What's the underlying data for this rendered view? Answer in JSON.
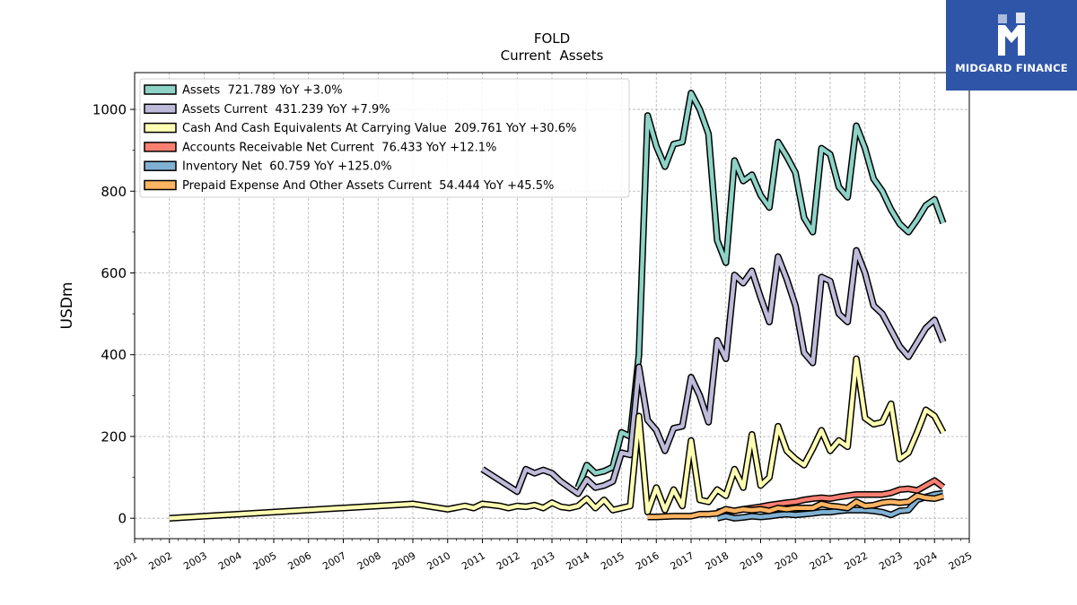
{
  "header": {
    "title": "FOLD",
    "subtitle": "Current  Assets"
  },
  "brand": {
    "name": "MIDGARD FINANCE",
    "logo_icon": "midgard-logo-icon",
    "color": "#2f55a8"
  },
  "chart_data": {
    "type": "line",
    "ylabel": "USDm",
    "xlim": [
      2001,
      2025
    ],
    "ylim": [
      -50,
      1090
    ],
    "grid": true,
    "legend_position": "top-left",
    "xticks": [
      "2001",
      "2002",
      "2003",
      "2004",
      "2005",
      "2006",
      "2007",
      "2008",
      "2009",
      "2010",
      "2011",
      "2012",
      "2013",
      "2014",
      "2015",
      "2016",
      "2017",
      "2018",
      "2019",
      "2020",
      "2021",
      "2022",
      "2023",
      "2024",
      "2025"
    ],
    "yticks": [
      0,
      200,
      400,
      600,
      800,
      1000
    ],
    "series": [
      {
        "name": "Assets",
        "legend": "Assets  721.789 YoY +3.0%",
        "color": "#8dd3c7",
        "points": [
          [
            2013.75,
            75
          ],
          [
            2014.0,
            130
          ],
          [
            2014.25,
            110
          ],
          [
            2014.5,
            115
          ],
          [
            2014.75,
            125
          ],
          [
            2015.0,
            210
          ],
          [
            2015.25,
            200
          ],
          [
            2015.5,
            400
          ],
          [
            2015.75,
            985
          ],
          [
            2016.0,
            910
          ],
          [
            2016.25,
            860
          ],
          [
            2016.5,
            915
          ],
          [
            2016.75,
            920
          ],
          [
            2017.0,
            1040
          ],
          [
            2017.25,
            1000
          ],
          [
            2017.5,
            940
          ],
          [
            2017.75,
            680
          ],
          [
            2018.0,
            625
          ],
          [
            2018.25,
            875
          ],
          [
            2018.5,
            825
          ],
          [
            2018.75,
            840
          ],
          [
            2019.0,
            790
          ],
          [
            2019.25,
            760
          ],
          [
            2019.5,
            920
          ],
          [
            2019.75,
            885
          ],
          [
            2020.0,
            845
          ],
          [
            2020.25,
            735
          ],
          [
            2020.5,
            700
          ],
          [
            2020.75,
            905
          ],
          [
            2021.0,
            890
          ],
          [
            2021.25,
            810
          ],
          [
            2021.5,
            785
          ],
          [
            2021.75,
            960
          ],
          [
            2022.0,
            905
          ],
          [
            2022.25,
            830
          ],
          [
            2022.5,
            800
          ],
          [
            2022.75,
            755
          ],
          [
            2023.0,
            720
          ],
          [
            2023.25,
            700
          ],
          [
            2023.5,
            730
          ],
          [
            2023.75,
            765
          ],
          [
            2024.0,
            780
          ],
          [
            2024.25,
            722
          ]
        ]
      },
      {
        "name": "Assets Current",
        "legend": "Assets Current  431.239 YoY +7.9%",
        "color": "#bebada",
        "points": [
          [
            2011.0,
            120
          ],
          [
            2012.0,
            65
          ],
          [
            2012.25,
            120
          ],
          [
            2012.5,
            110
          ],
          [
            2012.75,
            118
          ],
          [
            2013.0,
            110
          ],
          [
            2013.25,
            90
          ],
          [
            2013.5,
            75
          ],
          [
            2013.75,
            60
          ],
          [
            2014.0,
            95
          ],
          [
            2014.25,
            75
          ],
          [
            2014.5,
            80
          ],
          [
            2014.75,
            90
          ],
          [
            2015.0,
            160
          ],
          [
            2015.25,
            155
          ],
          [
            2015.5,
            370
          ],
          [
            2015.75,
            240
          ],
          [
            2016.0,
            215
          ],
          [
            2016.25,
            165
          ],
          [
            2016.5,
            220
          ],
          [
            2016.75,
            225
          ],
          [
            2017.0,
            345
          ],
          [
            2017.25,
            300
          ],
          [
            2017.5,
            235
          ],
          [
            2017.75,
            435
          ],
          [
            2018.0,
            390
          ],
          [
            2018.25,
            595
          ],
          [
            2018.5,
            575
          ],
          [
            2018.75,
            605
          ],
          [
            2019.0,
            540
          ],
          [
            2019.25,
            480
          ],
          [
            2019.5,
            640
          ],
          [
            2019.75,
            585
          ],
          [
            2020.0,
            520
          ],
          [
            2020.25,
            405
          ],
          [
            2020.5,
            380
          ],
          [
            2020.75,
            590
          ],
          [
            2021.0,
            580
          ],
          [
            2021.25,
            500
          ],
          [
            2021.5,
            480
          ],
          [
            2021.75,
            655
          ],
          [
            2022.0,
            600
          ],
          [
            2022.25,
            520
          ],
          [
            2022.5,
            500
          ],
          [
            2022.75,
            460
          ],
          [
            2023.0,
            420
          ],
          [
            2023.25,
            395
          ],
          [
            2023.5,
            430
          ],
          [
            2023.75,
            465
          ],
          [
            2024.0,
            485
          ],
          [
            2024.25,
            431
          ]
        ]
      },
      {
        "name": "Cash And Cash Equivalents At Carrying Value",
        "legend": "Cash And Cash Equivalents At Carrying Value  209.761 YoY +30.6%",
        "color": "#ffffb3",
        "points": [
          [
            2002.0,
            0
          ],
          [
            2009.0,
            35
          ],
          [
            2010.0,
            22
          ],
          [
            2010.5,
            30
          ],
          [
            2010.75,
            25
          ],
          [
            2011.0,
            35
          ],
          [
            2011.5,
            30
          ],
          [
            2011.75,
            25
          ],
          [
            2012.0,
            30
          ],
          [
            2012.25,
            28
          ],
          [
            2012.5,
            32
          ],
          [
            2012.75,
            25
          ],
          [
            2013.0,
            38
          ],
          [
            2013.25,
            28
          ],
          [
            2013.5,
            25
          ],
          [
            2013.75,
            30
          ],
          [
            2014.0,
            48
          ],
          [
            2014.25,
            25
          ],
          [
            2014.5,
            45
          ],
          [
            2014.75,
            20
          ],
          [
            2015.0,
            25
          ],
          [
            2015.25,
            30
          ],
          [
            2015.5,
            250
          ],
          [
            2015.75,
            15
          ],
          [
            2016.0,
            75
          ],
          [
            2016.25,
            20
          ],
          [
            2016.5,
            70
          ],
          [
            2016.75,
            30
          ],
          [
            2017.0,
            190
          ],
          [
            2017.25,
            45
          ],
          [
            2017.5,
            40
          ],
          [
            2017.75,
            70
          ],
          [
            2018.0,
            55
          ],
          [
            2018.25,
            120
          ],
          [
            2018.5,
            75
          ],
          [
            2018.75,
            205
          ],
          [
            2019.0,
            80
          ],
          [
            2019.25,
            100
          ],
          [
            2019.5,
            225
          ],
          [
            2019.75,
            165
          ],
          [
            2020.0,
            145
          ],
          [
            2020.25,
            130
          ],
          [
            2020.5,
            170
          ],
          [
            2020.75,
            215
          ],
          [
            2021.0,
            165
          ],
          [
            2021.25,
            190
          ],
          [
            2021.5,
            175
          ],
          [
            2021.75,
            390
          ],
          [
            2022.0,
            245
          ],
          [
            2022.25,
            230
          ],
          [
            2022.5,
            235
          ],
          [
            2022.75,
            280
          ],
          [
            2023.0,
            145
          ],
          [
            2023.25,
            160
          ],
          [
            2023.5,
            210
          ],
          [
            2023.75,
            265
          ],
          [
            2024.0,
            250
          ],
          [
            2024.25,
            210
          ]
        ]
      },
      {
        "name": "Accounts Receivable Net Current",
        "legend": "Accounts Receivable Net Current  76.433 YoY +12.1%",
        "color": "#fb8072",
        "points": [
          [
            2017.75,
            15
          ],
          [
            2018.0,
            20
          ],
          [
            2018.25,
            18
          ],
          [
            2018.5,
            22
          ],
          [
            2018.75,
            25
          ],
          [
            2019.0,
            28
          ],
          [
            2019.25,
            32
          ],
          [
            2019.5,
            35
          ],
          [
            2019.75,
            38
          ],
          [
            2020.0,
            40
          ],
          [
            2020.25,
            45
          ],
          [
            2020.5,
            48
          ],
          [
            2020.75,
            50
          ],
          [
            2021.0,
            48
          ],
          [
            2021.25,
            52
          ],
          [
            2021.5,
            55
          ],
          [
            2021.75,
            58
          ],
          [
            2022.0,
            58
          ],
          [
            2022.25,
            58
          ],
          [
            2022.5,
            58
          ],
          [
            2022.75,
            62
          ],
          [
            2023.0,
            70
          ],
          [
            2023.25,
            72
          ],
          [
            2023.5,
            68
          ],
          [
            2023.75,
            80
          ],
          [
            2024.0,
            92
          ],
          [
            2024.25,
            76
          ]
        ]
      },
      {
        "name": "Inventory Net",
        "legend": "Inventory Net  60.759 YoY +125.0%",
        "color": "#80b1d3",
        "points": [
          [
            2017.75,
            0
          ],
          [
            2018.0,
            5
          ],
          [
            2018.25,
            0
          ],
          [
            2018.5,
            2
          ],
          [
            2018.75,
            5
          ],
          [
            2019.0,
            3
          ],
          [
            2019.25,
            5
          ],
          [
            2019.5,
            8
          ],
          [
            2019.75,
            10
          ],
          [
            2020.0,
            8
          ],
          [
            2020.25,
            10
          ],
          [
            2020.5,
            12
          ],
          [
            2020.75,
            15
          ],
          [
            2021.0,
            15
          ],
          [
            2021.25,
            18
          ],
          [
            2021.5,
            20
          ],
          [
            2021.75,
            20
          ],
          [
            2022.0,
            20
          ],
          [
            2022.25,
            18
          ],
          [
            2022.5,
            15
          ],
          [
            2022.75,
            8
          ],
          [
            2023.0,
            18
          ],
          [
            2023.25,
            20
          ],
          [
            2023.5,
            45
          ],
          [
            2023.75,
            52
          ],
          [
            2024.0,
            58
          ],
          [
            2024.25,
            61
          ]
        ]
      },
      {
        "name": "Prepaid Expense And Other Assets Current",
        "legend": "Prepaid Expense And Other Assets Current  54.444 YoY +45.5%",
        "color": "#fdb462",
        "points": [
          [
            2015.75,
            3
          ],
          [
            2016.0,
            3
          ],
          [
            2016.5,
            5
          ],
          [
            2017.0,
            5
          ],
          [
            2017.25,
            10
          ],
          [
            2017.5,
            10
          ],
          [
            2017.75,
            12
          ],
          [
            2018.0,
            22
          ],
          [
            2018.25,
            18
          ],
          [
            2018.5,
            22
          ],
          [
            2018.75,
            20
          ],
          [
            2019.0,
            22
          ],
          [
            2019.25,
            18
          ],
          [
            2019.5,
            25
          ],
          [
            2019.75,
            22
          ],
          [
            2020.0,
            25
          ],
          [
            2020.25,
            25
          ],
          [
            2020.5,
            25
          ],
          [
            2020.75,
            35
          ],
          [
            2021.0,
            30
          ],
          [
            2021.25,
            28
          ],
          [
            2021.5,
            25
          ],
          [
            2021.75,
            40
          ],
          [
            2022.0,
            30
          ],
          [
            2022.25,
            32
          ],
          [
            2022.5,
            38
          ],
          [
            2022.75,
            40
          ],
          [
            2023.0,
            38
          ],
          [
            2023.25,
            40
          ],
          [
            2023.5,
            55
          ],
          [
            2023.75,
            50
          ],
          [
            2024.0,
            48
          ],
          [
            2024.25,
            54
          ]
        ]
      }
    ]
  }
}
